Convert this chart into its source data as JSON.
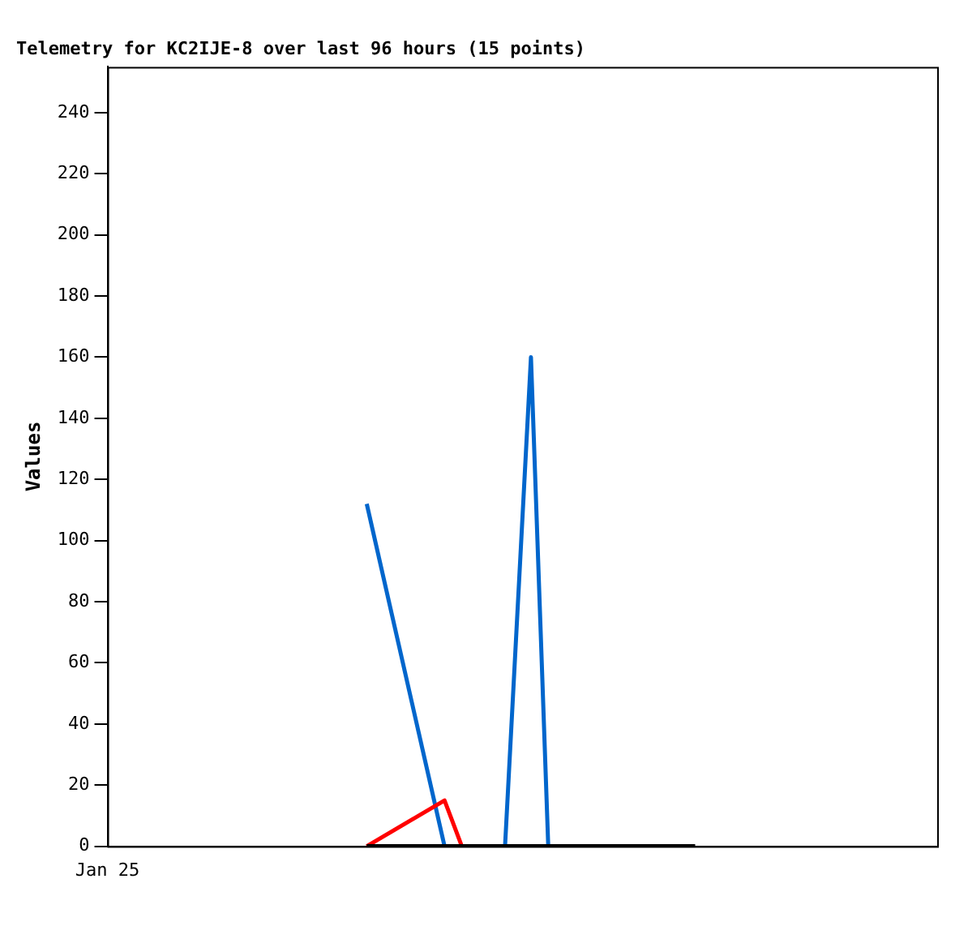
{
  "chart_data": {
    "type": "line",
    "title": "Telemetry for KC2IJE-8 over last 96 hours (15 points)",
    "ylabel": "Values",
    "annotations": [
      "Jan 25"
    ],
    "categories": [
      null,
      null,
      null,
      null,
      null,
      null,
      null,
      null,
      null,
      null,
      null,
      null,
      null,
      null,
      null,
      null,
      null,
      null,
      null,
      null,
      null,
      null,
      null,
      null,
      null,
      null,
      null,
      null,
      null,
      null,
      null,
      null,
      null,
      null,
      null,
      null,
      null,
      null,
      null,
      null,
      null,
      null,
      null,
      null,
      null,
      null,
      null,
      null,
      null,
      null,
      null,
      null,
      null,
      null,
      null,
      null,
      null,
      null,
      null,
      null,
      null,
      null,
      null,
      null,
      null,
      null,
      null,
      null,
      null,
      null,
      null,
      null,
      null,
      null,
      null,
      null,
      null,
      null,
      null,
      null,
      null,
      null,
      null,
      null,
      null,
      null,
      null,
      null,
      null,
      null,
      null,
      null,
      null,
      null,
      null,
      null,
      null
    ],
    "ylim": [
      0,
      255
    ],
    "yticks": [
      0,
      20,
      40,
      60,
      80,
      100,
      120,
      140,
      160,
      180,
      200,
      220,
      240
    ],
    "grid": false,
    "legend": false,
    "marker": "none",
    "line_style": "solid",
    "series": [
      {
        "color": "#000000",
        "values": [
          null,
          null,
          null,
          null,
          null,
          null,
          null,
          null,
          null,
          null,
          null,
          null,
          null,
          null,
          null,
          null,
          null,
          null,
          null,
          null,
          null,
          null,
          null,
          null,
          null,
          null,
          null,
          null,
          null,
          null,
          0,
          null,
          null,
          null,
          null,
          null,
          null,
          null,
          null,
          null,
          null,
          null,
          null,
          null,
          null,
          null,
          null,
          null,
          null,
          null,
          null,
          null,
          null,
          null,
          null,
          null,
          null,
          null,
          null,
          null,
          null,
          null,
          null,
          null,
          null,
          null,
          null,
          null,
          0,
          null,
          null,
          null,
          null,
          null,
          null,
          null,
          null,
          null,
          null,
          null,
          null,
          null,
          null,
          null,
          null,
          null,
          null,
          null,
          null,
          null,
          null,
          null,
          null,
          null,
          null,
          null,
          null
        ]
      },
      {
        "color": "#ff0000",
        "values": [
          null,
          null,
          null,
          null,
          null,
          null,
          null,
          null,
          null,
          null,
          null,
          null,
          null,
          null,
          null,
          null,
          null,
          null,
          null,
          null,
          null,
          null,
          null,
          null,
          null,
          null,
          null,
          null,
          null,
          null,
          0,
          null,
          null,
          null,
          null,
          null,
          null,
          null,
          null,
          15,
          null,
          0,
          null,
          null,
          null,
          null,
          null,
          null,
          null,
          null,
          null,
          null,
          null,
          null,
          null,
          null,
          null,
          null,
          null,
          null,
          null,
          null,
          null,
          null,
          null,
          null,
          null,
          null,
          null,
          null,
          null,
          null,
          null,
          null,
          null,
          null,
          null,
          null,
          null,
          null,
          null,
          null,
          null,
          null,
          null,
          null,
          null,
          null,
          null,
          null,
          null,
          null,
          null,
          null,
          null,
          null,
          null
        ]
      },
      {
        "color": "#0066cc",
        "values": [
          null,
          null,
          null,
          null,
          null,
          null,
          null,
          null,
          null,
          null,
          null,
          null,
          null,
          null,
          null,
          null,
          null,
          null,
          null,
          null,
          null,
          null,
          null,
          null,
          null,
          null,
          null,
          null,
          null,
          null,
          112,
          null,
          null,
          null,
          null,
          null,
          null,
          null,
          null,
          0,
          null,
          null,
          null,
          null,
          null,
          null,
          null,
          null,
          null,
          null,
          null,
          null,
          null,
          null,
          null,
          null,
          null,
          null,
          null,
          null,
          null,
          null,
          null,
          null,
          null,
          null,
          null,
          null,
          null,
          null,
          null,
          null,
          null,
          null,
          null,
          null,
          null,
          null,
          null,
          null,
          null,
          null,
          null,
          null,
          null,
          null,
          null,
          null,
          null,
          null,
          null,
          null,
          null,
          null,
          null,
          null,
          null
        ]
      },
      {
        "color": "#0066cc",
        "values": [
          null,
          null,
          null,
          null,
          null,
          null,
          null,
          null,
          null,
          null,
          null,
          null,
          null,
          null,
          null,
          null,
          null,
          null,
          null,
          null,
          null,
          null,
          null,
          null,
          null,
          null,
          null,
          null,
          null,
          null,
          null,
          null,
          null,
          null,
          null,
          null,
          null,
          null,
          null,
          null,
          null,
          null,
          null,
          null,
          null,
          null,
          0,
          null,
          null,
          160,
          null,
          0,
          null,
          null,
          null,
          null,
          null,
          null,
          null,
          null,
          null,
          null,
          null,
          null,
          null,
          null,
          null,
          null,
          null,
          null,
          null,
          null,
          null,
          null,
          null,
          null,
          null,
          null,
          null,
          null,
          null,
          null,
          null,
          null,
          null,
          null,
          null,
          null,
          null,
          null,
          null,
          null,
          null,
          null,
          null,
          null,
          null
        ]
      }
    ]
  }
}
